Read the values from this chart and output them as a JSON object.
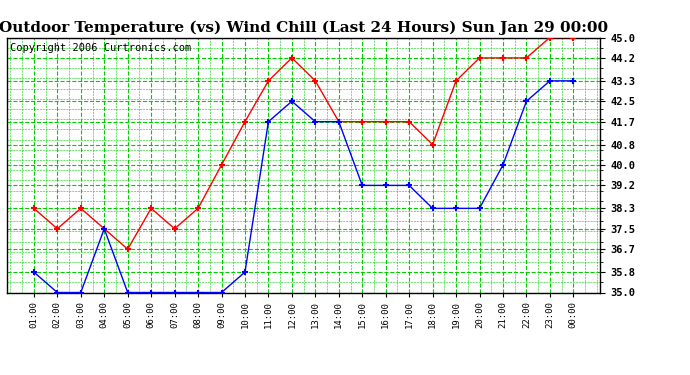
{
  "title": "Outdoor Temperature (vs) Wind Chill (Last 24 Hours) Sun Jan 29 00:00",
  "copyright": "Copyright 2006 Curtronics.com",
  "x_labels": [
    "01:00",
    "02:00",
    "03:00",
    "04:00",
    "05:00",
    "06:00",
    "07:00",
    "08:00",
    "09:00",
    "10:00",
    "11:00",
    "12:00",
    "13:00",
    "14:00",
    "15:00",
    "16:00",
    "17:00",
    "18:00",
    "19:00",
    "20:00",
    "21:00",
    "22:00",
    "23:00",
    "00:00"
  ],
  "red_data": [
    38.3,
    37.5,
    38.3,
    37.5,
    36.7,
    38.3,
    37.5,
    38.3,
    40.0,
    41.7,
    43.3,
    44.2,
    43.3,
    41.7,
    41.7,
    41.7,
    41.7,
    40.8,
    43.3,
    44.2,
    44.2,
    44.2,
    45.0,
    45.0
  ],
  "blue_data": [
    35.8,
    35.0,
    35.0,
    37.5,
    35.0,
    35.0,
    35.0,
    35.0,
    35.0,
    35.8,
    41.7,
    42.5,
    41.7,
    41.7,
    39.2,
    39.2,
    39.2,
    38.3,
    38.3,
    38.3,
    40.0,
    42.5,
    43.3,
    43.3
  ],
  "ylim": [
    35.0,
    45.0
  ],
  "yticks": [
    35.0,
    35.8,
    36.7,
    37.5,
    38.3,
    39.2,
    40.0,
    40.8,
    41.7,
    42.5,
    43.3,
    44.2,
    45.0
  ],
  "red_color": "#ff0000",
  "blue_color": "#0000ff",
  "bg_color": "#ffffff",
  "plot_bg_color": "#ffffff",
  "grid_color": "#00cc00",
  "title_fontsize": 11,
  "copyright_fontsize": 7.5
}
